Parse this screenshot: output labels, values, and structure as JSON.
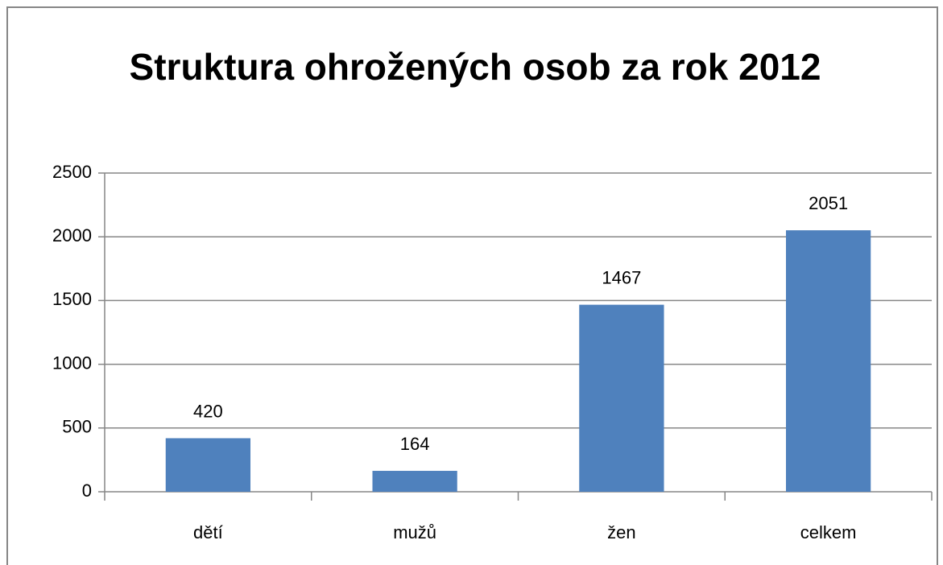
{
  "chart_data": {
    "type": "bar",
    "title": "Struktura ohrožených osob za rok 2012",
    "categories": [
      "dětí",
      "mužů",
      "žen",
      "celkem"
    ],
    "values": [
      420,
      164,
      1467,
      2051
    ],
    "color": "#4f81bd",
    "ylim": [
      0,
      2500
    ],
    "yticks": [
      0,
      500,
      1000,
      1500,
      2000,
      2500
    ],
    "grid": true,
    "data_labels": true
  }
}
